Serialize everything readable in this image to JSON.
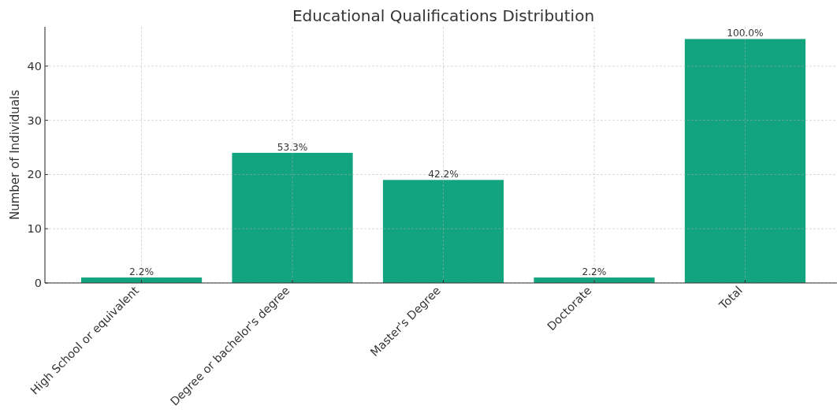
{
  "chart_data": {
    "type": "bar",
    "title": "Educational Qualifications Distribution",
    "ylabel": "Number of Individuals",
    "categories": [
      "High School or equivalent",
      "Degree or bachelor's degree",
      "Master's Degree",
      "Doctorate",
      "Total"
    ],
    "values": [
      1,
      24,
      19,
      1,
      45
    ],
    "color": "#12a37f",
    "annotations": [
      {
        "text": "2.2%",
        "x": "High School or equivalent",
        "y": 1
      },
      {
        "text": "53.3%",
        "x": "Degree or bachelor's degree",
        "y": 24
      },
      {
        "text": "42.2%",
        "x": "Master's Degree",
        "y": 19
      },
      {
        "text": "2.2%",
        "x": "Doctorate",
        "y": 1
      },
      {
        "text": "100.0%",
        "x": "Total",
        "y": 45
      }
    ],
    "ylim": [
      0,
      47.25
    ],
    "yticks": [
      0,
      10,
      20,
      30,
      40
    ],
    "grid": true
  }
}
